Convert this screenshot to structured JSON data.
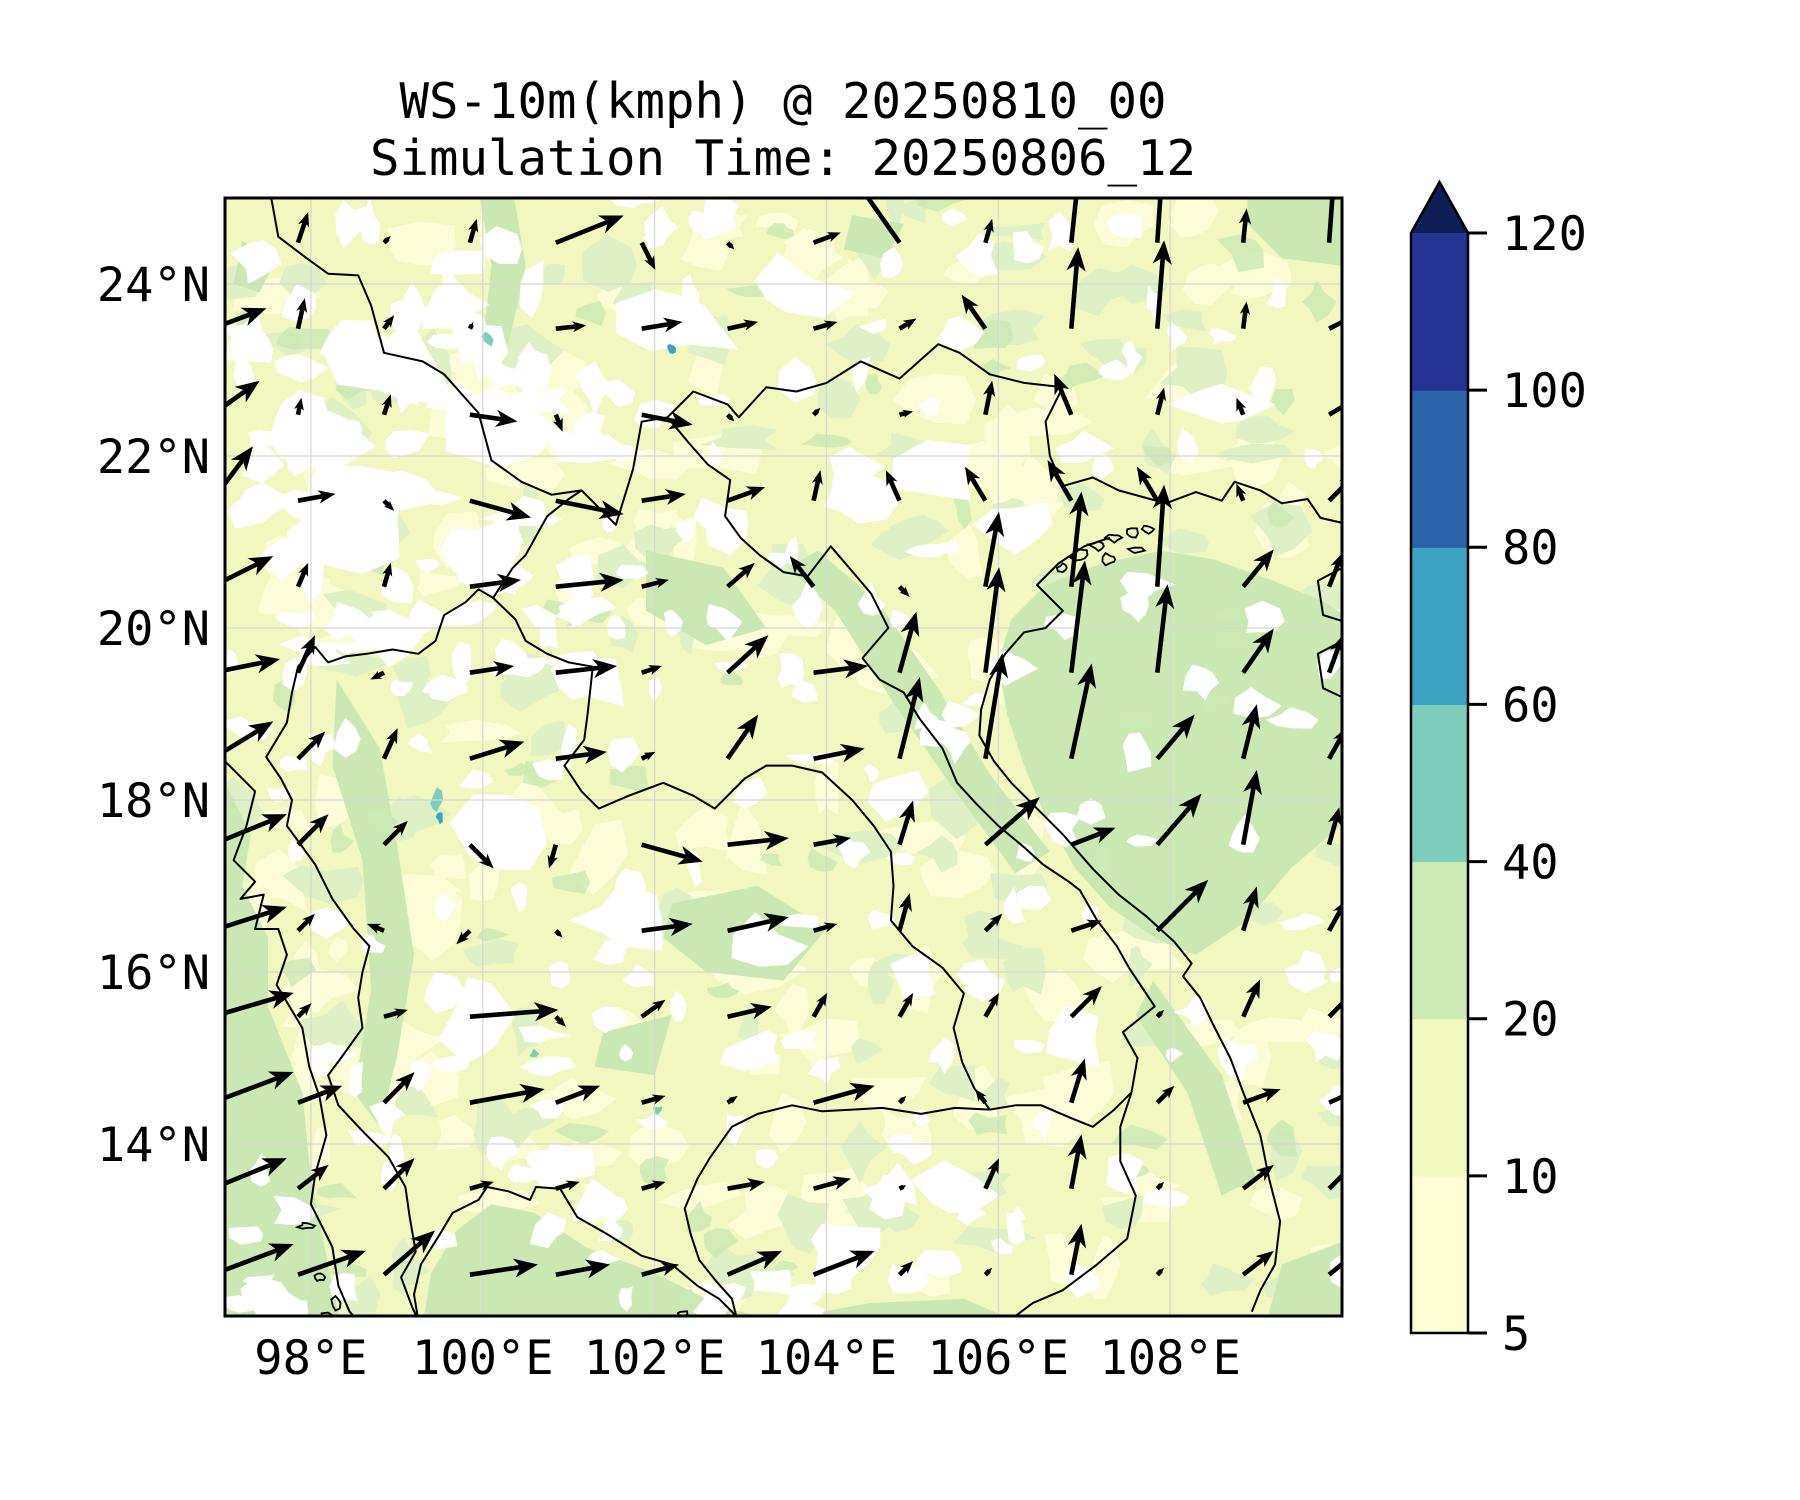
{
  "title": {
    "line1": "WS-10m(kmph) @ 20250810_00",
    "line2": "Simulation Time: 20250806_12"
  },
  "axes": {
    "x_tick_labels": [
      "98°E",
      "100°E",
      "102°E",
      "104°E",
      "106°E",
      "108°E"
    ],
    "x_tick_lons": [
      98,
      100,
      102,
      104,
      106,
      108
    ],
    "y_tick_labels": [
      "24°N",
      "22°N",
      "20°N",
      "18°N",
      "16°N",
      "14°N"
    ],
    "y_tick_lats": [
      24,
      22,
      20,
      18,
      16,
      14
    ],
    "lon_range": [
      97,
      110
    ],
    "lat_range": [
      12,
      25
    ],
    "grid": true
  },
  "colorbar": {
    "tick_labels": [
      "120",
      "100",
      "80",
      "60",
      "40",
      "20",
      "10",
      "5"
    ],
    "boundaries": [
      5,
      10,
      20,
      40,
      60,
      80,
      100,
      120
    ],
    "segment_colors": [
      "#fdfdd4",
      "#f1f8bd",
      "#cdeab5",
      "#7ecdba",
      "#3aa3c2",
      "#2b62a9",
      "#253392"
    ],
    "over_color": "#0d1e55",
    "under_color": "#ffffff",
    "extend": "max"
  },
  "chart_data": {
    "type": "quiver_filled_contour_map",
    "variable": "WS-10m",
    "units": "kmph",
    "title": "WS-10m(kmph) @ 20250810_00",
    "subtitle": "Simulation Time: 20250806_12",
    "lon_range": [
      97,
      110
    ],
    "lat_range": [
      12,
      25
    ],
    "contour_levels": [
      5,
      10,
      20,
      40,
      60,
      80,
      100,
      120
    ],
    "colormap": "YlGnBu",
    "quiver": {
      "lon0": 96.85,
      "dlon": 1.0,
      "lat0": 24.48,
      "dlat": -1.0,
      "speed_unit": "kmph",
      "u": [
        [
          4,
          3,
          2,
          2,
          20,
          4,
          2,
          8,
          -14,
          2,
          3,
          2,
          1,
          2
        ],
        [
          16,
          2,
          3,
          1,
          9,
          12,
          9,
          7,
          5,
          -7,
          2,
          2,
          1,
          12
        ],
        [
          14,
          1,
          2,
          14,
          2,
          15,
          2,
          2,
          4,
          2,
          -5,
          2,
          -2,
          10
        ],
        [
          12,
          11,
          3,
          18,
          20,
          13,
          11,
          2,
          -4,
          -6,
          -7,
          -6,
          -2,
          8
        ],
        [
          18,
          3,
          2,
          15,
          20,
          8,
          8,
          -7,
          3,
          4,
          3,
          2,
          9,
          4
        ],
        [
          20,
          5,
          -4,
          13,
          18,
          6,
          12,
          16,
          5,
          4,
          4,
          3,
          9,
          4
        ],
        [
          18,
          8,
          4,
          16,
          15,
          4,
          9,
          15,
          6,
          5,
          6,
          11,
          4,
          5
        ],
        [
          22,
          9,
          7,
          7,
          -2,
          18,
          18,
          11,
          4,
          16,
          13,
          13,
          4,
          3
        ],
        [
          22,
          5,
          -5,
          -4,
          2,
          15,
          18,
          7,
          3,
          5,
          9,
          15,
          4,
          5
        ],
        [
          24,
          4,
          7,
          26,
          3,
          7,
          13,
          4,
          4,
          4,
          9,
          2,
          5,
          15
        ],
        [
          24,
          13,
          9,
          22,
          13,
          7,
          3,
          18,
          2,
          -3,
          4,
          5,
          11,
          20
        ],
        [
          22,
          9,
          9,
          7,
          7,
          7,
          11,
          11,
          2,
          4,
          3,
          2,
          9,
          9
        ],
        [
          24,
          20,
          15,
          20,
          16,
          11,
          16,
          18,
          4,
          2,
          3,
          2,
          9,
          11
        ],
        [
          18,
          15,
          18,
          22,
          15,
          11,
          15,
          16,
          9,
          2,
          11,
          7,
          13,
          9
        ]
      ],
      "v": [
        [
          6,
          9,
          2,
          7,
          8,
          -8,
          -2,
          3,
          20,
          7,
          28,
          30,
          10,
          28
        ],
        [
          6,
          9,
          4,
          2,
          1,
          2,
          2,
          2,
          3,
          10,
          24,
          26,
          8,
          6
        ],
        [
          10,
          5,
          6,
          -2,
          -5,
          -3,
          -2,
          2,
          1,
          10,
          12,
          8,
          5,
          6
        ],
        [
          16,
          2,
          -3,
          -5,
          -4,
          2,
          4,
          9,
          9,
          10,
          12,
          10,
          5,
          8
        ],
        [
          9,
          7,
          7,
          2,
          2,
          2,
          7,
          9,
          -3,
          22,
          28,
          30,
          11,
          10
        ],
        [
          4,
          11,
          -2,
          2,
          2,
          2,
          11,
          2,
          18,
          31,
          33,
          26,
          13,
          11
        ],
        [
          11,
          8,
          9,
          5,
          2,
          2,
          13,
          3,
          24,
          31,
          28,
          13,
          16,
          9
        ],
        [
          9,
          9,
          7,
          -7,
          -7,
          -5,
          2,
          2,
          13,
          14,
          5,
          15,
          22,
          11
        ],
        [
          7,
          5,
          2,
          -4,
          -2,
          2,
          4,
          2,
          11,
          5,
          3,
          15,
          13,
          9
        ],
        [
          7,
          4,
          2,
          2,
          -3,
          5,
          3,
          7,
          7,
          7,
          9,
          2,
          11,
          15
        ],
        [
          9,
          5,
          9,
          4,
          5,
          2,
          2,
          5,
          2,
          4,
          13,
          5,
          4,
          9
        ],
        [
          9,
          7,
          9,
          2,
          2,
          2,
          2,
          3,
          1,
          9,
          16,
          2,
          7,
          9
        ],
        [
          9,
          7,
          13,
          3,
          3,
          3,
          7,
          7,
          4,
          2,
          15,
          2,
          7,
          9
        ],
        [
          11,
          9,
          13,
          9,
          7,
          5,
          7,
          5,
          7,
          5,
          5,
          5,
          9,
          11
        ]
      ]
    }
  }
}
